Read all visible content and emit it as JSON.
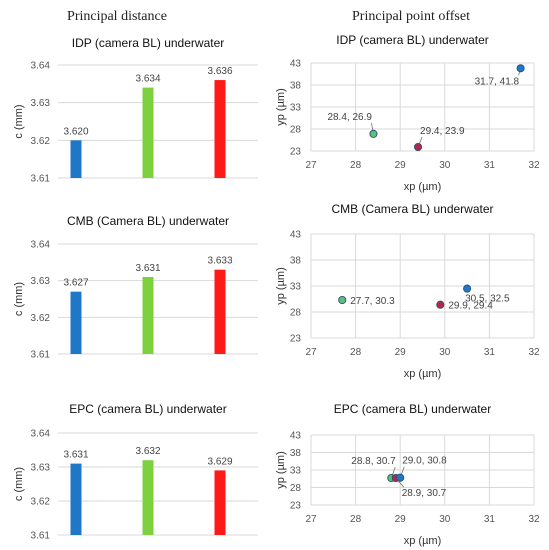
{
  "column_titles": {
    "left": "Principal distance",
    "right": "Principal point offset"
  },
  "chart_data": [
    {
      "type": "bar",
      "title": "IDP (camera BL)  underwater",
      "xlabel": "",
      "ylabel": "c (mm)",
      "ylim": [
        3.61,
        3.64
      ],
      "yticks": [
        "3.61",
        "3.62",
        "3.63",
        "3.64"
      ],
      "values": [
        3.62,
        3.634,
        3.636
      ],
      "value_labels": [
        "3.620",
        "3.634",
        "3.636"
      ],
      "colors": [
        "#1F77C8",
        "#7DD13F",
        "#FF1A1A"
      ],
      "grid": true
    },
    {
      "type": "scatter",
      "title": "IDP (camera BL)  underwater",
      "xlabel": "xp (µm)",
      "ylabel": "yp (µm)",
      "xlim": [
        27,
        32
      ],
      "ylim": [
        23,
        43
      ],
      "xticks": [
        "27",
        "28",
        "29",
        "30",
        "31",
        "32"
      ],
      "yticks": [
        "23",
        "28",
        "33",
        "38",
        "43"
      ],
      "points": [
        {
          "x": 31.7,
          "y": 41.8,
          "label": "31.7, 41.8",
          "color": "#1F77C8"
        },
        {
          "x": 28.4,
          "y": 26.9,
          "label": "28.4, 26.9",
          "color": "#5BC07A"
        },
        {
          "x": 29.4,
          "y": 23.9,
          "label": "29.4, 23.9",
          "color": "#B5264A"
        }
      ],
      "grid": true
    },
    {
      "type": "bar",
      "title": "CMB (Camera BL) underwater",
      "xlabel": "",
      "ylabel": "c (mm)",
      "ylim": [
        3.61,
        3.64
      ],
      "yticks": [
        "3.61",
        "3.62",
        "3.63",
        "3.64"
      ],
      "values": [
        3.627,
        3.631,
        3.633
      ],
      "value_labels": [
        "3.627",
        "3.631",
        "3.633"
      ],
      "colors": [
        "#1F77C8",
        "#7DD13F",
        "#FF1A1A"
      ],
      "grid": true
    },
    {
      "type": "scatter",
      "title": "CMB (Camera BL) underwater",
      "xlabel": "xp (µm)",
      "ylabel": "yp (µm)",
      "xlim": [
        27,
        32
      ],
      "ylim": [
        23,
        43
      ],
      "xticks": [
        "27",
        "28",
        "29",
        "30",
        "31",
        "32"
      ],
      "yticks": [
        "23",
        "28",
        "33",
        "38",
        "43"
      ],
      "points": [
        {
          "x": 30.5,
          "y": 32.5,
          "label": "30.5, 32.5",
          "color": "#1F77C8"
        },
        {
          "x": 27.7,
          "y": 30.3,
          "label": "27.7, 30.3",
          "color": "#5BC07A"
        },
        {
          "x": 29.9,
          "y": 29.4,
          "label": "29.9, 29.4",
          "color": "#B5264A"
        }
      ],
      "grid": true
    },
    {
      "type": "bar",
      "title": "EPC (camera BL) underwater",
      "xlabel": "",
      "ylabel": "c (mm)",
      "ylim": [
        3.61,
        3.64
      ],
      "yticks": [
        "3.61",
        "3.62",
        "3.63",
        "3.64"
      ],
      "values": [
        3.631,
        3.632,
        3.629
      ],
      "value_labels": [
        "3.631",
        "3.632",
        "3.629"
      ],
      "colors": [
        "#1F77C8",
        "#7DD13F",
        "#FF1A1A"
      ],
      "grid": true
    },
    {
      "type": "scatter",
      "title": "EPC (camera BL) underwater",
      "xlabel": "xp (µm)",
      "ylabel": "yp (µm)",
      "xlim": [
        27,
        32
      ],
      "ylim": [
        23,
        43
      ],
      "xticks": [
        "27",
        "28",
        "29",
        "30",
        "31",
        "32"
      ],
      "yticks": [
        "23",
        "28",
        "33",
        "38",
        "43"
      ],
      "points": [
        {
          "x": 28.8,
          "y": 30.7,
          "label": "28.8, 30.7",
          "color": "#5BC07A"
        },
        {
          "x": 28.9,
          "y": 30.7,
          "label": "28.9, 30.7",
          "color": "#B5264A"
        },
        {
          "x": 29.0,
          "y": 30.8,
          "label": "29.0, 30.8",
          "color": "#1F77C8"
        }
      ],
      "grid": true
    }
  ]
}
